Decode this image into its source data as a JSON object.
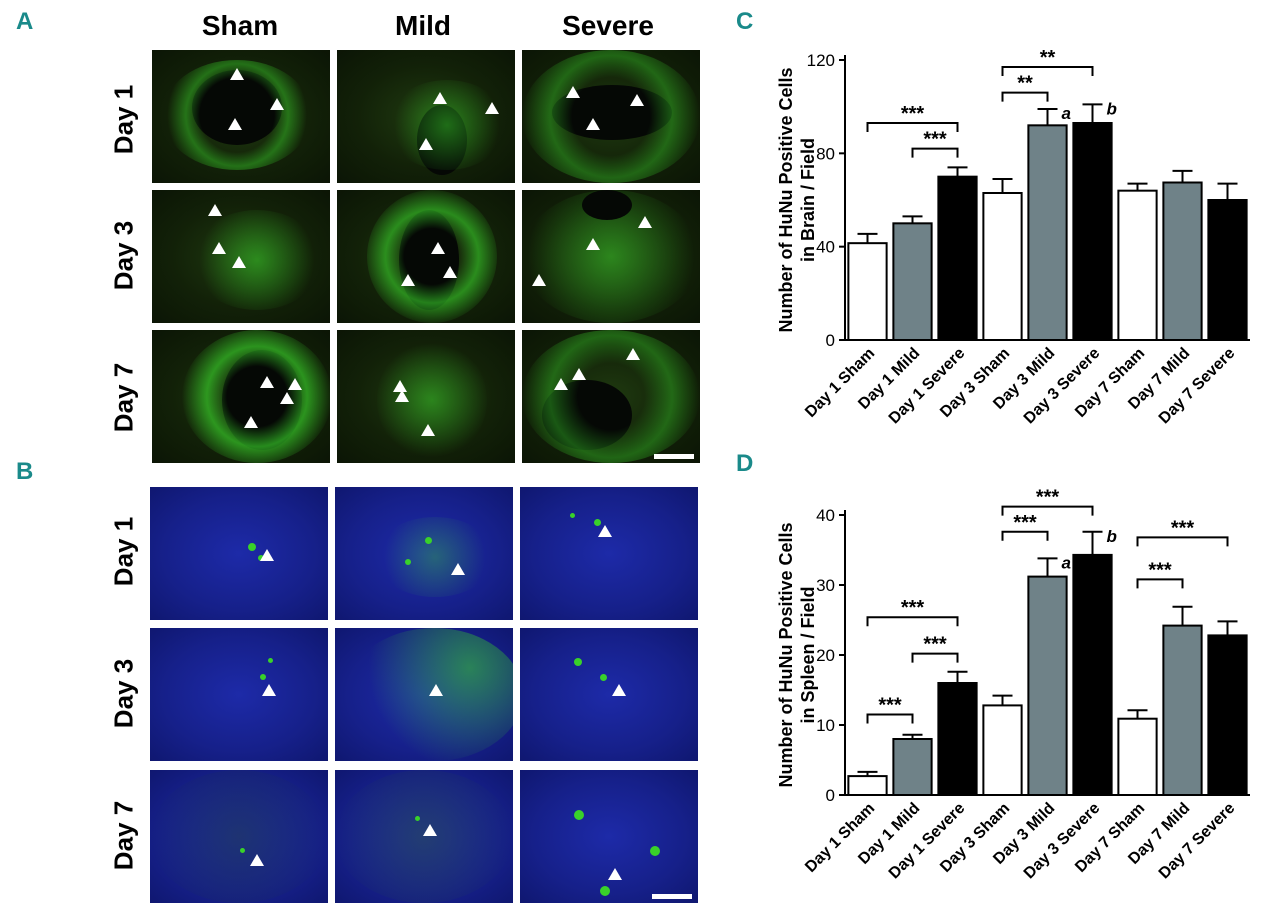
{
  "panels": {
    "a": "A",
    "b": "B",
    "c": "C",
    "d": "D"
  },
  "columns": [
    "Sham",
    "Mild",
    "Severe"
  ],
  "rows": [
    "Day 1",
    "Day 3",
    "Day 7"
  ],
  "colors": {
    "sham": "#ffffff",
    "mild": "#6f8288",
    "severe": "#000000",
    "green_signal": "#39d12a",
    "blue_bg": "#1a26a0",
    "panel_letter": "#1a8a8a"
  },
  "chart_data": [
    {
      "type": "bar",
      "panel": "C",
      "categories": [
        "Day 1 Sham",
        "Day 1 Mild",
        "Day 1 Severe",
        "Day 3 Sham",
        "Day 3 Mild",
        "Day 3 Severe",
        "Day 7 Sham",
        "Day 7 Mild",
        "Day 7 Severe"
      ],
      "values": [
        41.5,
        50,
        70,
        63,
        92,
        93,
        64,
        67.5,
        60
      ],
      "errors": [
        4,
        3,
        4,
        6,
        7,
        8,
        3,
        5,
        7
      ],
      "fills": [
        "sham",
        "mild",
        "severe",
        "sham",
        "mild",
        "severe",
        "sham",
        "mild",
        "severe"
      ],
      "ylabel_line1": "Number of HuNu Positive Cells",
      "ylabel_line2": "in Brain / Field",
      "ylim": [
        0,
        120
      ],
      "yticks": [
        0,
        40,
        80,
        120
      ],
      "bar_letters": [
        {
          "index": 4,
          "text": "a"
        },
        {
          "index": 5,
          "text": "b"
        }
      ],
      "brackets": [
        {
          "from": 0,
          "to": 2,
          "level": 93,
          "text": "***"
        },
        {
          "from": 1,
          "to": 2,
          "level": 82,
          "text": "***"
        },
        {
          "from": 3,
          "to": 5,
          "level": 117,
          "text": "**"
        },
        {
          "from": 3,
          "to": 4,
          "level": 106,
          "text": "**"
        }
      ]
    },
    {
      "type": "bar",
      "panel": "D",
      "categories": [
        "Day 1 Sham",
        "Day 1 Mild",
        "Day 1 Severe",
        "Day 3 Sham",
        "Day 3 Mild",
        "Day 3 Severe",
        "Day 7 Sham",
        "Day 7 Mild",
        "Day 7 Severe"
      ],
      "values": [
        2.7,
        8,
        16,
        12.8,
        31.2,
        34.3,
        10.9,
        24.2,
        22.8
      ],
      "errors": [
        0.6,
        0.6,
        1.6,
        1.4,
        2.6,
        3.3,
        1.2,
        2.7,
        2.0
      ],
      "fills": [
        "sham",
        "mild",
        "severe",
        "sham",
        "mild",
        "severe",
        "sham",
        "mild",
        "severe"
      ],
      "ylabel_line1": "Number of HuNu Positive Cells",
      "ylabel_line2": "in Spleen / Field",
      "ylim": [
        0,
        40
      ],
      "yticks": [
        0,
        10,
        20,
        30,
        40
      ],
      "bar_letters": [
        {
          "index": 4,
          "text": "a"
        },
        {
          "index": 5,
          "text": "b"
        }
      ],
      "brackets": [
        {
          "from": 0,
          "to": 1,
          "level": 11.5,
          "text": "***"
        },
        {
          "from": 0,
          "to": 2,
          "level": 25.4,
          "text": "***"
        },
        {
          "from": 1,
          "to": 2,
          "level": 20.2,
          "text": "***"
        },
        {
          "from": 3,
          "to": 4,
          "level": 37.6,
          "text": "***"
        },
        {
          "from": 3,
          "to": 5,
          "level": 41.2,
          "text": "***"
        },
        {
          "from": 6,
          "to": 7,
          "level": 30.8,
          "text": "***"
        },
        {
          "from": 6,
          "to": 8,
          "level": 36.8,
          "text": "***"
        }
      ]
    }
  ]
}
